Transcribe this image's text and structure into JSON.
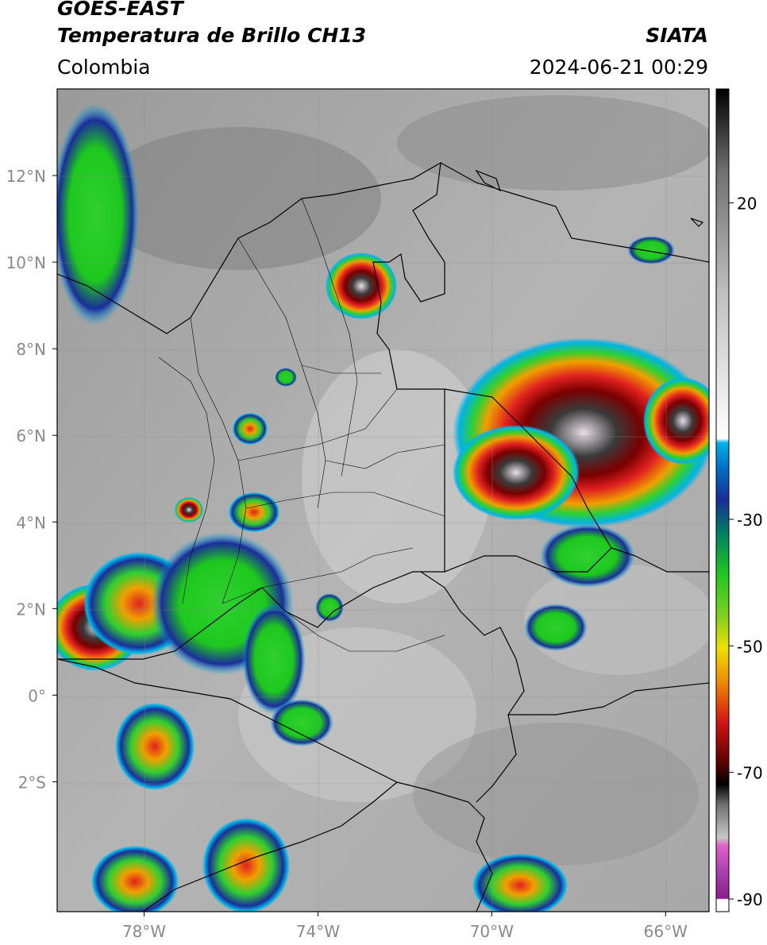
{
  "header": {
    "satellite": "GOES-EAST",
    "product": "Temperatura de Brillo CH13",
    "region": "Colombia",
    "agency": "SIATA",
    "datetime": "2024-06-21 00:29"
  },
  "map": {
    "lon_range": [
      -80,
      -65
    ],
    "lat_range": [
      -5,
      14
    ],
    "lat_ticks": [
      "12°N",
      "10°N",
      "8°N",
      "6°N",
      "4°N",
      "2°N",
      "0°",
      "2°S"
    ],
    "lon_ticks": [
      "78°W",
      "74°W",
      "70°W",
      "66°W"
    ],
    "lat_tick_values": [
      12,
      10,
      8,
      6,
      4,
      2,
      0,
      -2
    ],
    "lon_tick_values": [
      -78,
      -74,
      -70,
      -66
    ]
  },
  "colorbar": {
    "tick_labels": [
      "20",
      "-30",
      "-50",
      "-70",
      "-90"
    ],
    "tick_values": [
      20,
      -30,
      -50,
      -70,
      -90
    ],
    "range": [
      -92,
      38
    ],
    "colors": {
      "warm_gray": "#b8b8b8",
      "cold_top": "#000000",
      "cyan": "#00b4e6",
      "blue": "#1a2e9a",
      "green": "#1ec81e",
      "yellow": "#f0e000",
      "orange": "#f08c00",
      "red": "#d21414",
      "dark_red": "#5a0000",
      "magenta": "#e060c8",
      "purple": "#8a1e8a"
    }
  }
}
